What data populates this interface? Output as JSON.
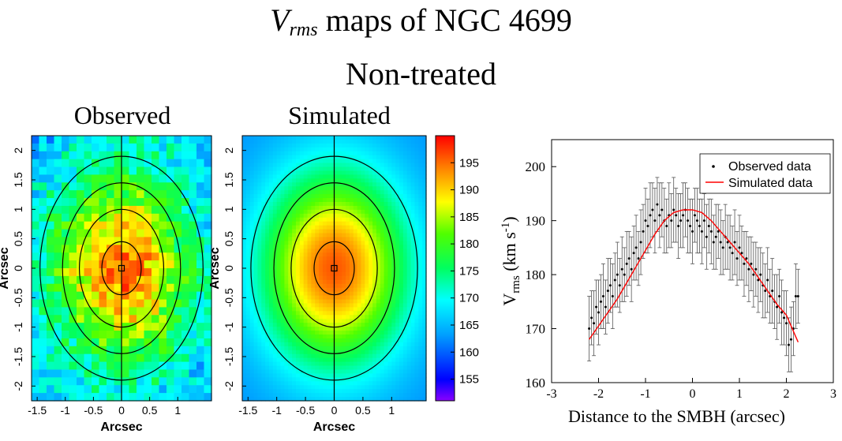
{
  "figure": {
    "title_symbol": "V",
    "title_subscript": "rms",
    "title_rest": " maps of NGC 4699",
    "subtitle": "Non-treated"
  },
  "chart_data": [
    {
      "type": "heatmap",
      "title": "Observed",
      "xlabel": "Arcsec",
      "ylabel": "Arcsec",
      "xlim": [
        -1.6,
        1.6
      ],
      "ylim": [
        -2.25,
        2.25
      ],
      "xticks": [
        "-1.5",
        "-1",
        "-0.5",
        "0",
        "0.5",
        "1"
      ],
      "xtick_values": [
        -1.5,
        -1,
        -0.5,
        0,
        0.5,
        1
      ],
      "yticks": [
        "2",
        "1.5",
        "1",
        "0.5",
        "0",
        "-0.5",
        "-1",
        "-1.5",
        "-2"
      ],
      "ytick_values": [
        2,
        1.5,
        1,
        0.5,
        0,
        -0.5,
        -1,
        -1.5,
        -2
      ],
      "contour_semi_axes": [
        [
          0.35,
          0.45
        ],
        [
          0.75,
          1.0
        ],
        [
          1.05,
          1.45
        ],
        [
          1.45,
          1.9
        ]
      ],
      "peak_value": 195,
      "edge_value": 165
    },
    {
      "type": "heatmap",
      "title": "Simulated",
      "xlabel": "Arcsec",
      "ylabel": "Arcsec",
      "xlim": [
        -1.6,
        1.6
      ],
      "ylim": [
        -2.25,
        2.25
      ],
      "xticks": [
        "-1.5",
        "-1",
        "-0.5",
        "0",
        "0.5",
        "1"
      ],
      "xtick_values": [
        -1.5,
        -1,
        -0.5,
        0,
        0.5,
        1
      ],
      "yticks": [
        "2",
        "1.5",
        "1",
        "0.5",
        "0",
        "-0.5",
        "-1",
        "-1.5",
        "-2"
      ],
      "ytick_values": [
        2,
        1.5,
        1,
        0.5,
        0,
        -0.5,
        -1,
        -1.5,
        -2
      ],
      "contour_semi_axes": [
        [
          0.35,
          0.45
        ],
        [
          0.75,
          1.0
        ],
        [
          1.05,
          1.45
        ],
        [
          1.45,
          1.9
        ]
      ],
      "peak_value": 196,
      "edge_value": 162
    },
    {
      "type": "colorbar",
      "range": [
        151,
        200
      ],
      "ticks": [
        "195",
        "190",
        "185",
        "180",
        "175",
        "170",
        "165",
        "160",
        "155"
      ],
      "tick_values": [
        195,
        190,
        185,
        180,
        175,
        170,
        165,
        160,
        155
      ]
    },
    {
      "type": "scatter",
      "xlabel": "Distance to the SMBH (arcsec)",
      "ylabel_main": "V",
      "ylabel_sub": "rms",
      "ylabel_unit": " (km s",
      "ylabel_exp": "-1",
      "ylabel_close": ")",
      "xlim": [
        -3,
        3
      ],
      "ylim": [
        160,
        205
      ],
      "xticks": [
        "-3",
        "-2",
        "-1",
        "0",
        "1",
        "2",
        "3"
      ],
      "xtick_values": [
        -3,
        -2,
        -1,
        0,
        1,
        2,
        3
      ],
      "yticks": [
        "200",
        "190",
        "180",
        "170",
        "160"
      ],
      "ytick_values": [
        200,
        190,
        180,
        170,
        160
      ],
      "legend_position": "top-right",
      "legend": [
        "Observed data",
        "Simulated data"
      ],
      "series": [
        {
          "name": "Observed data",
          "x": [
            -2.2,
            -2.15,
            -2.1,
            -2.05,
            -2.0,
            -1.95,
            -1.9,
            -1.85,
            -1.8,
            -1.75,
            -1.7,
            -1.65,
            -1.6,
            -1.55,
            -1.5,
            -1.45,
            -1.4,
            -1.35,
            -1.3,
            -1.25,
            -1.2,
            -1.15,
            -1.1,
            -1.05,
            -1.0,
            -0.95,
            -0.9,
            -0.85,
            -0.8,
            -0.75,
            -0.7,
            -0.65,
            -0.6,
            -0.55,
            -0.5,
            -0.45,
            -0.4,
            -0.35,
            -0.3,
            -0.25,
            -0.2,
            -0.15,
            -0.1,
            -0.05,
            0.0,
            0.05,
            0.1,
            0.15,
            0.2,
            0.25,
            0.3,
            0.35,
            0.4,
            0.45,
            0.5,
            0.55,
            0.6,
            0.65,
            0.7,
            0.75,
            0.8,
            0.85,
            0.9,
            0.95,
            1.0,
            1.05,
            1.1,
            1.15,
            1.2,
            1.25,
            1.3,
            1.35,
            1.4,
            1.45,
            1.5,
            1.55,
            1.6,
            1.65,
            1.7,
            1.75,
            1.8,
            1.85,
            1.9,
            1.95,
            2.0,
            2.05,
            2.1,
            2.15,
            2.2,
            2.25
          ],
          "y": [
            170,
            172,
            171,
            174,
            173,
            175,
            176,
            174,
            177,
            178,
            176,
            179,
            180,
            178,
            181,
            180,
            182,
            183,
            181,
            184,
            185,
            183,
            186,
            188,
            190,
            189,
            191,
            192,
            190,
            193,
            191,
            192,
            190,
            189,
            191,
            190,
            192,
            191,
            189,
            190,
            191,
            192,
            190,
            189,
            188,
            191,
            190,
            189,
            188,
            190,
            187,
            189,
            188,
            186,
            187,
            188,
            186,
            185,
            187,
            186,
            185,
            184,
            186,
            183,
            185,
            184,
            182,
            183,
            181,
            182,
            180,
            181,
            179,
            180,
            178,
            177,
            179,
            176,
            177,
            175,
            174,
            176,
            173,
            172,
            171,
            167,
            168,
            170,
            176,
            176
          ],
          "err": [
            6,
            5,
            6,
            5,
            6,
            5,
            6,
            5,
            6,
            5,
            6,
            5,
            6,
            5,
            6,
            5,
            6,
            5,
            6,
            5,
            6,
            5,
            6,
            5,
            6,
            5,
            6,
            5,
            6,
            5,
            6,
            5,
            6,
            5,
            6,
            5,
            6,
            5,
            6,
            5,
            6,
            5,
            6,
            5,
            6,
            5,
            6,
            5,
            6,
            5,
            6,
            5,
            6,
            5,
            6,
            5,
            6,
            5,
            6,
            5,
            6,
            5,
            6,
            5,
            6,
            5,
            6,
            5,
            6,
            5,
            6,
            5,
            6,
            5,
            6,
            5,
            6,
            5,
            6,
            5,
            6,
            5,
            6,
            5,
            6,
            5,
            6,
            5,
            6,
            5
          ]
        },
        {
          "name": "Simulated data",
          "color": "#ff0000",
          "x": [
            -2.2,
            -2.0,
            -1.8,
            -1.6,
            -1.4,
            -1.2,
            -1.0,
            -0.8,
            -0.6,
            -0.4,
            -0.2,
            0.0,
            0.2,
            0.4,
            0.6,
            0.8,
            1.0,
            1.2,
            1.4,
            1.6,
            1.8,
            2.0,
            2.2,
            2.25
          ],
          "y": [
            168,
            170.5,
            173,
            175.5,
            178.5,
            181.5,
            184.5,
            187.5,
            190,
            191.5,
            192,
            192,
            191.5,
            190,
            188,
            186,
            184,
            182,
            179.5,
            177,
            174.5,
            172.5,
            168.5,
            167.5
          ]
        }
      ]
    }
  ]
}
